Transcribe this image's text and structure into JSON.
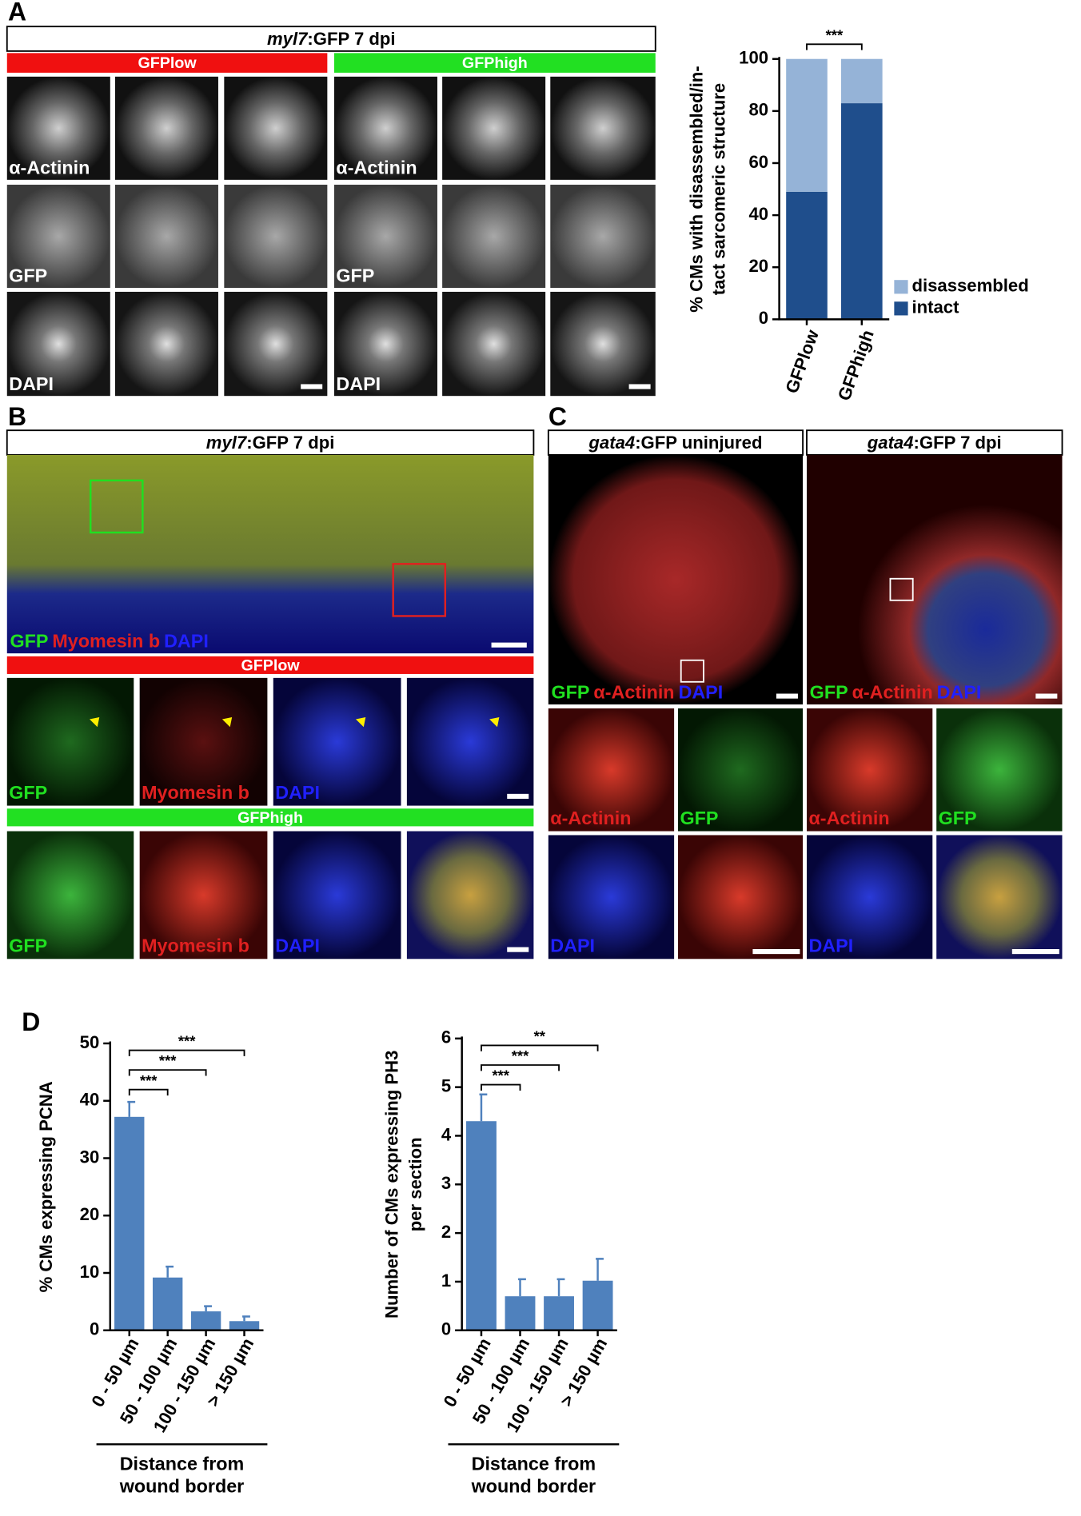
{
  "panel_labels": [
    "A",
    "B",
    "C",
    "D"
  ],
  "panel_A": {
    "header": [
      "myl7",
      ":GFP  7 dpi"
    ],
    "groups": [
      "GFPlow",
      "GFPhigh"
    ],
    "row_labels": [
      "α-Actinin",
      "GFP",
      "DAPI"
    ]
  },
  "panel_B": {
    "header": [
      "myl7",
      ":GFP  7 dpi"
    ],
    "overview_legend": [
      "GFP",
      "Myomesin b",
      "DAPI"
    ],
    "groups": [
      "GFPlow",
      "GFPhigh"
    ],
    "channel_labels": [
      "GFP",
      "Myomesin b",
      "DAPI"
    ]
  },
  "panel_C": {
    "headers": [
      [
        "gata4",
        ":GFP uninjured"
      ],
      [
        "gata4",
        ":GFP 7 dpi"
      ]
    ],
    "overview_legend": [
      "GFP",
      "α-Actinin",
      "DAPI"
    ],
    "channel_labels": [
      "α-Actinin",
      "GFP",
      "DAPI"
    ]
  },
  "chart_data": [
    {
      "type": "bar",
      "y_label": [
        "% CMs with disassembled/in-",
        "tact sarcomeric structure"
      ],
      "categories": [
        "GFPlow",
        "GFPhigh"
      ],
      "series": [
        {
          "name": "intact",
          "color": "#1f4e8c",
          "values": [
            49,
            83
          ]
        },
        {
          "name": "disassembled",
          "color": "#95b3d7",
          "values": [
            51,
            17
          ]
        }
      ],
      "ylim": [
        0,
        100
      ],
      "yticks": [
        0,
        20,
        40,
        60,
        80,
        100
      ],
      "annotations": [
        "***"
      ],
      "legend": "right"
    },
    {
      "type": "bar",
      "y_label": [
        "% CMs expressing PCNA"
      ],
      "x_label": [
        "Distance from",
        "wound border"
      ],
      "categories": [
        "0 - 50 µm",
        "50 - 100 µm",
        "100 - 150 µm",
        "> 150 µm"
      ],
      "values": [
        37.2,
        9.2,
        3.3,
        1.6
      ],
      "errors": [
        2.6,
        1.9,
        0.9,
        0.8
      ],
      "color": "#4f81bd",
      "ylim": [
        0,
        50
      ],
      "yticks": [
        0,
        10,
        20,
        30,
        40,
        50
      ],
      "annotations": [
        "***",
        "***",
        "***"
      ]
    },
    {
      "type": "bar",
      "y_label": [
        "Number of CMs expressing PH3",
        "per section"
      ],
      "x_label": [
        "Distance from",
        "wound border"
      ],
      "categories": [
        "0 - 50 µm",
        "50 - 100 µm",
        "100 - 150 µm",
        "> 150 µm"
      ],
      "values": [
        4.3,
        0.7,
        0.7,
        1.02
      ],
      "errors": [
        0.55,
        0.35,
        0.35,
        0.45
      ],
      "color": "#4f81bd",
      "ylim": [
        0,
        6
      ],
      "yticks": [
        0,
        1,
        2,
        3,
        4,
        5,
        6
      ],
      "annotations": [
        "***",
        "***",
        "**"
      ]
    }
  ]
}
